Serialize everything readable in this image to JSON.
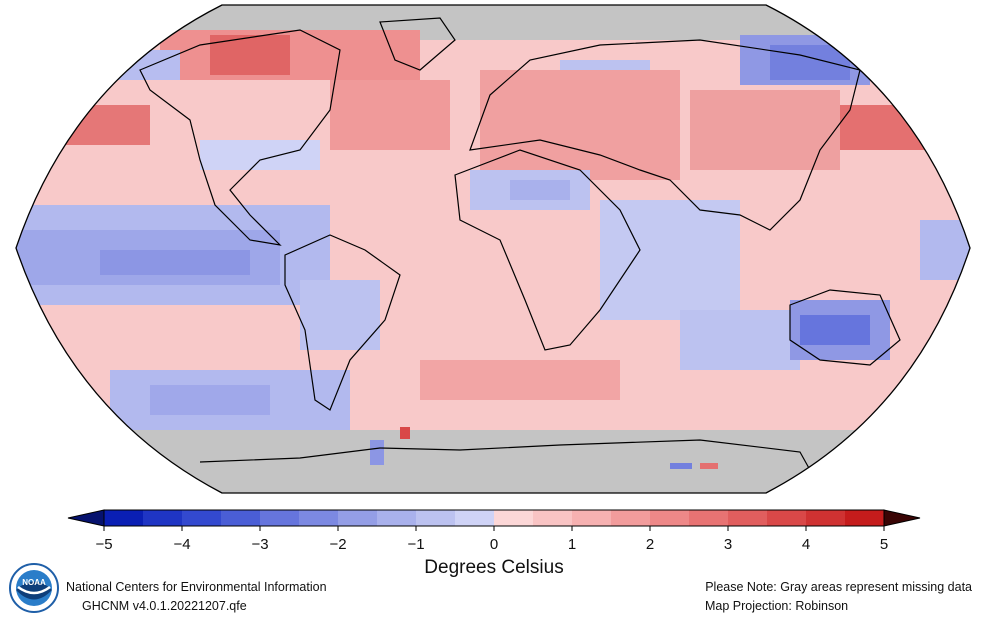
{
  "map": {
    "projection_note": "Map Projection: Robinson",
    "missing_note": "Please Note: Gray areas represent missing data",
    "colors": {
      "missing": "#c4c4c4",
      "land_outline": "#000000"
    }
  },
  "colorbar": {
    "title": "Degrees Celsius",
    "ticks": [
      "−5",
      "−4",
      "−3",
      "−2",
      "−1",
      "0",
      "1",
      "2",
      "3",
      "4",
      "5"
    ],
    "range": [
      -5,
      5
    ],
    "step": 0.5,
    "colors": [
      "#0a1fb4",
      "#1f35c4",
      "#3349cf",
      "#4a5ed6",
      "#6675dd",
      "#7c89e2",
      "#949ee6",
      "#a9b1ec",
      "#bcc2f0",
      "#cfd3f6",
      "#fcd7d7",
      "#f9c4c4",
      "#f6b1b1",
      "#f29c9c",
      "#ee8888",
      "#e87373",
      "#e15e5e",
      "#d94848",
      "#cf3232",
      "#c51c1c"
    ]
  },
  "footer": {
    "org": "National Centers for Environmental Information",
    "dataset": "GHCNM v4.0.1.20221207.qfe"
  },
  "logo": {
    "text": "NOAA",
    "icon": "noaa-logo-icon"
  }
}
